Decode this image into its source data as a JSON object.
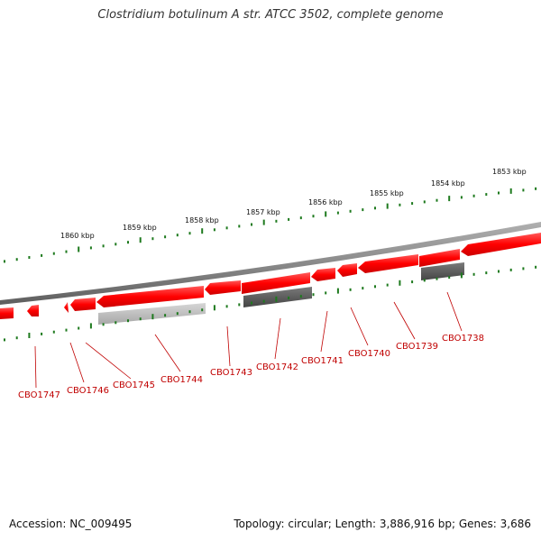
{
  "title": "Clostridium botulinum A str. ATCC 3502, complete genome",
  "footer": {
    "accession": "Accession: NC_009495",
    "summary": "Topology: circular; Length: 3,886,916 bp; Genes: 3,686"
  },
  "kbp_labels": [
    "1860 kbp",
    "1859 kbp",
    "1858 kbp",
    "1857 kbp",
    "1856 kbp",
    "1855 kbp",
    "1854 kbp",
    "1853 kbp"
  ],
  "gene_labels": [
    "CBO1747",
    "CBO1746",
    "CBO1745",
    "CBO1744",
    "CBO1743",
    "CBO1742",
    "CBO1741",
    "CBO1740",
    "CBO1739",
    "CBO1738"
  ],
  "colors": {
    "gene": "#ff1a1a",
    "gene_shadow": "#c40000",
    "backbone": "#8a8a8a",
    "tick": "#1e7a1e",
    "label": "#c00000",
    "gray_dark": "#5a5a5a",
    "gray_light": "#bdbdbd"
  }
}
